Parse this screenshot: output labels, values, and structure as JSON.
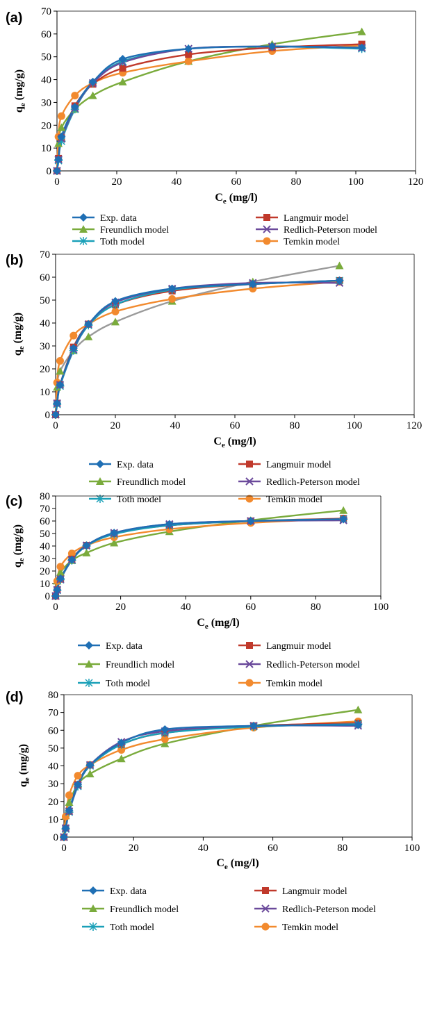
{
  "colors": {
    "exp": "#1f6fb4",
    "langmuir": "#c0392b",
    "freundlich": "#7aab3c",
    "redlich": "#6b4a9b",
    "toth": "#1aa0b8",
    "temkin": "#f28a2e",
    "grey_line": "#9a9a9a"
  },
  "chart_data": [
    {
      "panel": "(a)",
      "type": "line",
      "xlabel": "Ce (mg/l)",
      "ylabel": "qe (mg/g)",
      "xlim": [
        0,
        120
      ],
      "ylim": [
        0,
        70
      ],
      "xticks": [
        "0",
        "20",
        "40",
        "60",
        "80",
        "100",
        "120"
      ],
      "yticks": [
        "0",
        "10",
        "20",
        "30",
        "40",
        "50",
        "60",
        "70"
      ],
      "grid": false,
      "legend": {
        "placement": "below",
        "entries": [
          "Exp. data",
          "Langmuir model",
          "Freundlich model",
          "Redlich-Peterson model",
          "Toth model",
          "Temkin model"
        ]
      },
      "series": [
        {
          "name": "Exp. data",
          "marker": "diamond",
          "x": [
            0,
            0.5,
            1.5,
            6,
            12,
            22,
            44,
            72,
            102
          ],
          "y": [
            0,
            5,
            15,
            28,
            39,
            49,
            53.5,
            54.5,
            54
          ]
        },
        {
          "name": "Langmuir model",
          "marker": "square",
          "x": [
            0,
            0.5,
            1.5,
            6,
            12,
            22,
            44,
            72,
            102
          ],
          "y": [
            0,
            5.5,
            14.5,
            28.5,
            38,
            45,
            51,
            54,
            55.5
          ]
        },
        {
          "name": "Freundlich model",
          "marker": "triangle",
          "x": [
            0,
            0.5,
            1.5,
            6,
            12,
            22,
            44,
            72,
            102
          ],
          "y": [
            0,
            12,
            19,
            27,
            33,
            39,
            48,
            55.5,
            61
          ]
        },
        {
          "name": "Redlich-Peterson model",
          "marker": "x",
          "x": [
            0,
            0.5,
            1.5,
            6,
            12,
            22,
            44,
            72,
            102
          ],
          "y": [
            0,
            5,
            14,
            27.5,
            38.5,
            47.5,
            53.5,
            54.5,
            54
          ]
        },
        {
          "name": "Toth model",
          "marker": "star",
          "x": [
            0,
            0.5,
            1.5,
            6,
            12,
            22,
            44,
            72,
            102
          ],
          "y": [
            0,
            4.5,
            13,
            27,
            38.5,
            48,
            53.5,
            54.5,
            53.5
          ]
        },
        {
          "name": "Temkin model",
          "marker": "circle",
          "x": [
            0,
            0.5,
            1.5,
            6,
            12,
            22,
            44,
            72,
            102
          ],
          "y": [
            0,
            15,
            24,
            33,
            38.5,
            43,
            48,
            52.5,
            55
          ]
        }
      ]
    },
    {
      "panel": "(b)",
      "type": "line",
      "xlabel": "Ce (mg/l)",
      "ylabel": "qe (mg/g)",
      "xlim": [
        0,
        120
      ],
      "ylim": [
        0,
        70
      ],
      "xticks": [
        "0",
        "20",
        "40",
        "60",
        "80",
        "100",
        "120"
      ],
      "yticks": [
        "0",
        "10",
        "20",
        "30",
        "40",
        "50",
        "60",
        "70"
      ],
      "grid": false,
      "legend": {
        "placement": "below",
        "entries": [
          "Exp. data",
          "Langmuir model",
          "Freundlich model",
          "Redlich-Peterson model",
          "Toth model",
          "Temkin model"
        ]
      },
      "series": [
        {
          "name": "Exp. data",
          "marker": "diamond",
          "x": [
            0,
            0.5,
            1.5,
            6,
            11,
            20,
            39,
            66,
            95
          ],
          "y": [
            0,
            5,
            13,
            29,
            39.5,
            49.5,
            55,
            57,
            58.5
          ]
        },
        {
          "name": "Langmuir model",
          "marker": "square",
          "x": [
            0,
            0.5,
            1.5,
            6,
            11,
            20,
            39,
            66,
            95
          ],
          "y": [
            0,
            5,
            13,
            29.5,
            39.5,
            48,
            54,
            57,
            58.5
          ]
        },
        {
          "name": "Freundlich model",
          "marker": "triangle",
          "x": [
            0,
            0.5,
            1.5,
            6,
            11,
            20,
            39,
            66,
            95
          ],
          "y": [
            0,
            12,
            19,
            28,
            34,
            40.5,
            49.5,
            58,
            65
          ]
        },
        {
          "name": "Redlich-Peterson model",
          "marker": "x",
          "x": [
            0,
            0.5,
            1.5,
            6,
            11,
            20,
            39,
            66,
            95
          ],
          "y": [
            0,
            5,
            13,
            28.5,
            39.5,
            49,
            55,
            57.5,
            57.5
          ]
        },
        {
          "name": "Toth model",
          "marker": "star",
          "x": [
            0,
            0.5,
            1.5,
            6,
            11,
            20,
            39,
            66,
            95
          ],
          "y": [
            0,
            4.5,
            12.5,
            28,
            39,
            48,
            54.5,
            57,
            58.5
          ]
        },
        {
          "name": "Temkin model",
          "marker": "circle",
          "x": [
            0,
            0.5,
            1.5,
            6,
            11,
            20,
            39,
            66,
            95
          ],
          "y": [
            0,
            14,
            23.5,
            34.5,
            39.5,
            45,
            50.5,
            55,
            58
          ]
        }
      ]
    },
    {
      "panel": "(c)",
      "type": "line",
      "xlabel": "Ce (mg/l)",
      "ylabel": "qe (mg/g)",
      "xlim": [
        0,
        100
      ],
      "ylim": [
        0,
        80
      ],
      "xticks": [
        "0",
        "20",
        "40",
        "60",
        "80",
        "100"
      ],
      "yticks": [
        "0",
        "10",
        "20",
        "30",
        "40",
        "50",
        "60",
        "70",
        "80"
      ],
      "grid": false,
      "legend": {
        "placement": "below",
        "entries": [
          "Exp. data",
          "Langmuir model",
          "Freundlich model",
          "Redlich-Peterson model",
          "Toth model",
          "Temkin model"
        ]
      },
      "series": [
        {
          "name": "Exp. data",
          "marker": "diamond",
          "x": [
            0,
            0.5,
            1.5,
            5,
            9.5,
            18,
            35,
            60,
            88.5
          ],
          "y": [
            0,
            5,
            14,
            29,
            40.5,
            50.5,
            57.5,
            60,
            61.5
          ]
        },
        {
          "name": "Langmuir model",
          "marker": "square",
          "x": [
            0,
            0.5,
            1.5,
            5,
            9.5,
            18,
            35,
            60,
            88.5
          ],
          "y": [
            0,
            5,
            13.5,
            29.5,
            40.5,
            50,
            56.5,
            60,
            62
          ]
        },
        {
          "name": "Freundlich model",
          "marker": "triangle",
          "x": [
            0,
            0.5,
            1.5,
            5,
            9.5,
            18,
            35,
            60,
            88.5
          ],
          "y": [
            0,
            12,
            19,
            28.5,
            34.5,
            42.5,
            51.5,
            60.5,
            68.5
          ]
        },
        {
          "name": "Redlich-Peterson model",
          "marker": "x",
          "x": [
            0,
            0.5,
            1.5,
            5,
            9.5,
            18,
            35,
            60,
            88.5
          ],
          "y": [
            0,
            5,
            13.5,
            29,
            40.5,
            50.5,
            57.5,
            60,
            60.5
          ]
        },
        {
          "name": "Toth model",
          "marker": "star",
          "x": [
            0,
            0.5,
            1.5,
            5,
            9.5,
            18,
            35,
            60,
            88.5
          ],
          "y": [
            0,
            4.5,
            13,
            28.5,
            40,
            49.5,
            56.5,
            60,
            61.5
          ]
        },
        {
          "name": "Temkin model",
          "marker": "circle",
          "x": [
            0,
            0.5,
            1.5,
            5,
            9.5,
            18,
            35,
            60,
            88.5
          ],
          "y": [
            0,
            12,
            23.5,
            34,
            40.5,
            47,
            53.5,
            58.5,
            62
          ]
        }
      ]
    },
    {
      "panel": "(d)",
      "type": "line",
      "xlabel": "Ce (mg/l)",
      "ylabel": "qe (mg/g)",
      "xlim": [
        0,
        100
      ],
      "ylim": [
        0,
        80
      ],
      "xticks": [
        "0",
        "20",
        "40",
        "60",
        "80",
        "100"
      ],
      "yticks": [
        "0",
        "10",
        "20",
        "30",
        "40",
        "50",
        "60",
        "70",
        "80"
      ],
      "grid": false,
      "legend": {
        "placement": "below",
        "entries": [
          "Exp. data",
          "Langmuir model",
          "Freundlich model",
          "Redlich-Peterson model",
          "Toth model",
          "Temkin model"
        ]
      },
      "series": [
        {
          "name": "Exp. data",
          "marker": "diamond",
          "x": [
            0,
            0.5,
            1.5,
            4,
            7.5,
            16.5,
            29,
            54.5,
            84.5
          ],
          "y": [
            0,
            5,
            15,
            29.5,
            40.5,
            53,
            60.5,
            62.5,
            63
          ]
        },
        {
          "name": "Langmuir model",
          "marker": "square",
          "x": [
            0,
            0.5,
            1.5,
            4,
            7.5,
            16.5,
            29,
            54.5,
            84.5
          ],
          "y": [
            0,
            5,
            14.5,
            29.5,
            40.5,
            52,
            58.5,
            62.5,
            64
          ]
        },
        {
          "name": "Freundlich model",
          "marker": "triangle",
          "x": [
            0,
            0.5,
            1.5,
            4,
            7.5,
            16.5,
            29,
            54.5,
            84.5
          ],
          "y": [
            0,
            12,
            19.5,
            29.5,
            35.5,
            44,
            52.5,
            62.5,
            71.5
          ]
        },
        {
          "name": "Redlich-Peterson model",
          "marker": "x",
          "x": [
            0,
            0.5,
            1.5,
            4,
            7.5,
            16.5,
            29,
            54.5,
            84.5
          ],
          "y": [
            0,
            5,
            14.5,
            29,
            40.5,
            53.5,
            59.5,
            62.5,
            62.5
          ]
        },
        {
          "name": "Toth model",
          "marker": "star",
          "x": [
            0,
            0.5,
            1.5,
            4,
            7.5,
            16.5,
            29,
            54.5,
            84.5
          ],
          "y": [
            0,
            4.5,
            14,
            28.5,
            40,
            52,
            58.5,
            62,
            63.5
          ]
        },
        {
          "name": "Temkin model",
          "marker": "circle",
          "x": [
            0,
            0.5,
            1.5,
            4,
            7.5,
            16.5,
            29,
            54.5,
            84.5
          ],
          "y": [
            0,
            11.5,
            23.5,
            34.5,
            40.5,
            49,
            55,
            61.5,
            65
          ]
        }
      ]
    }
  ]
}
